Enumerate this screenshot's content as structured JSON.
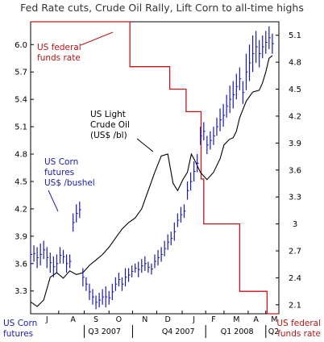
{
  "chart_data": {
    "type": "line",
    "title": "Fed Rate cuts, Crude Oil Rally, Lift Corn to all-time highs",
    "left_axis": {
      "label": [
        "US Corn",
        "futures"
      ],
      "ylim": [
        3.05,
        6.25
      ],
      "ticks": [
        "6.0",
        "5.7",
        "5.4",
        "5.1",
        "4.8",
        "4.5",
        "4.2",
        "3.9",
        "3.6",
        "3.3"
      ],
      "tick_values": [
        6.0,
        5.7,
        5.4,
        5.1,
        4.8,
        4.5,
        4.2,
        3.9,
        3.6,
        3.3
      ]
    },
    "right_axis": {
      "label": [
        "US federal",
        "funds rate"
      ],
      "ylim": [
        2.0,
        5.25
      ],
      "ticks": [
        "5.1",
        "4.8",
        "4.5",
        "4.2",
        "3.9",
        "3.6",
        "3.3",
        "3",
        "2.7",
        "2.4",
        "2.1"
      ],
      "tick_values": [
        5.1,
        4.8,
        4.5,
        4.2,
        3.9,
        3.6,
        3.3,
        3.0,
        2.7,
        2.4,
        2.1
      ]
    },
    "x_axis": {
      "months": [
        "J",
        "A",
        "S",
        "O",
        "N",
        "D",
        "J",
        "F",
        "M",
        "A",
        "M"
      ],
      "quarters": [
        "Q3 2007",
        "Q4 2007",
        "Q1 2008",
        "Q2"
      ]
    },
    "annotations": {
      "corn": [
        "US Corn",
        "futures",
        "US$ /bushel"
      ],
      "crude": [
        "US Light",
        "Crude Oil",
        "(US$ /bl)"
      ],
      "fed": [
        "US federal",
        "funds rate"
      ]
    },
    "series": [
      {
        "name": "US federal funds rate",
        "axis": "right",
        "color": "#c01818",
        "points": [
          [
            0,
            5.25
          ],
          [
            15.2,
            5.25
          ],
          [
            15.2,
            4.75
          ],
          [
            21.3,
            4.75
          ],
          [
            21.3,
            4.5
          ],
          [
            23.8,
            4.5
          ],
          [
            23.8,
            4.25
          ],
          [
            26.1,
            4.25
          ],
          [
            26.1,
            3.5
          ],
          [
            26.5,
            3.5
          ],
          [
            26.5,
            3.0
          ],
          [
            32.0,
            3.0
          ],
          [
            32.0,
            2.25
          ],
          [
            36.2,
            2.25
          ],
          [
            36.2,
            2.0
          ],
          [
            38,
            2.0
          ]
        ]
      },
      {
        "name": "US Light Crude Oil (US$ /bl)",
        "axis": "left",
        "color": "#000000",
        "points": [
          [
            0,
            3.18
          ],
          [
            1,
            3.13
          ],
          [
            2,
            3.2
          ],
          [
            3,
            3.45
          ],
          [
            4,
            3.5
          ],
          [
            5,
            3.44
          ],
          [
            6,
            3.52
          ],
          [
            7,
            3.48
          ],
          [
            8,
            3.5
          ],
          [
            9,
            3.58
          ],
          [
            10,
            3.64
          ],
          [
            11,
            3.7
          ],
          [
            12,
            3.78
          ],
          [
            13,
            3.88
          ],
          [
            14,
            3.98
          ],
          [
            15,
            4.05
          ],
          [
            16,
            4.1
          ],
          [
            17,
            4.2
          ],
          [
            18,
            4.4
          ],
          [
            19,
            4.6
          ],
          [
            20,
            4.78
          ],
          [
            21,
            4.8
          ],
          [
            21.8,
            4.48
          ],
          [
            22.5,
            4.4
          ],
          [
            23.3,
            4.52
          ],
          [
            24,
            4.6
          ],
          [
            24.6,
            4.8
          ],
          [
            25.2,
            4.72
          ],
          [
            26,
            4.6
          ],
          [
            27,
            4.52
          ],
          [
            28,
            4.6
          ],
          [
            29,
            4.75
          ],
          [
            29.6,
            4.9
          ],
          [
            30.4,
            4.96
          ],
          [
            31,
            4.98
          ],
          [
            31.5,
            5.05
          ],
          [
            32,
            5.2
          ],
          [
            33,
            5.38
          ],
          [
            34,
            5.48
          ],
          [
            35,
            5.5
          ],
          [
            35.5,
            5.58
          ],
          [
            36,
            5.7
          ],
          [
            36.5,
            5.85
          ],
          [
            37,
            5.88
          ]
        ]
      },
      {
        "name": "US Corn futures (US$ /bushel)",
        "axis": "left",
        "color": "#1a1aa8",
        "bars": [
          [
            0,
            3.55,
            3.85
          ],
          [
            0.5,
            3.62,
            3.8
          ],
          [
            1,
            3.55,
            3.78
          ],
          [
            1.5,
            3.58,
            3.82
          ],
          [
            2,
            3.65,
            3.85
          ],
          [
            2.5,
            3.55,
            3.78
          ],
          [
            3,
            3.5,
            3.72
          ],
          [
            3.5,
            3.45,
            3.68
          ],
          [
            4,
            3.5,
            3.7
          ],
          [
            4.5,
            3.6,
            3.78
          ],
          [
            5,
            3.6,
            3.75
          ],
          [
            5.5,
            3.5,
            3.7
          ],
          [
            6,
            3.55,
            3.7
          ],
          [
            6.5,
            3.95,
            4.15
          ],
          [
            7,
            4.05,
            4.25
          ],
          [
            7.5,
            4.1,
            4.28
          ],
          [
            8,
            3.35,
            3.55
          ],
          [
            8.5,
            3.3,
            3.45
          ],
          [
            9,
            3.2,
            3.38
          ],
          [
            9.5,
            3.15,
            3.32
          ],
          [
            10,
            3.1,
            3.25
          ],
          [
            10.5,
            3.12,
            3.28
          ],
          [
            11,
            3.15,
            3.32
          ],
          [
            11.5,
            3.12,
            3.35
          ],
          [
            12,
            3.15,
            3.3
          ],
          [
            12.5,
            3.2,
            3.38
          ],
          [
            13,
            3.3,
            3.45
          ],
          [
            13.5,
            3.35,
            3.5
          ],
          [
            14,
            3.3,
            3.45
          ],
          [
            14.5,
            3.35,
            3.55
          ],
          [
            15,
            3.4,
            3.55
          ],
          [
            15.5,
            3.45,
            3.58
          ],
          [
            16,
            3.5,
            3.6
          ],
          [
            16.5,
            3.45,
            3.62
          ],
          [
            17,
            3.5,
            3.65
          ],
          [
            17.5,
            3.52,
            3.68
          ],
          [
            18,
            3.5,
            3.62
          ],
          [
            18.5,
            3.48,
            3.6
          ],
          [
            19,
            3.55,
            3.7
          ],
          [
            19.5,
            3.58,
            3.75
          ],
          [
            20,
            3.62,
            3.78
          ],
          [
            20.5,
            3.68,
            3.85
          ],
          [
            21,
            3.75,
            3.92
          ],
          [
            21.5,
            3.8,
            3.95
          ],
          [
            22,
            3.85,
            4.05
          ],
          [
            22.5,
            4.0,
            4.15
          ],
          [
            23,
            4.05,
            4.22
          ],
          [
            23.5,
            4.1,
            4.25
          ],
          [
            24,
            4.3,
            4.5
          ],
          [
            24.5,
            4.4,
            4.6
          ],
          [
            25,
            4.5,
            4.72
          ],
          [
            25.5,
            4.6,
            4.8
          ],
          [
            26,
            4.9,
            5.1
          ],
          [
            26.5,
            4.95,
            5.15
          ],
          [
            27,
            4.8,
            5.0
          ],
          [
            27.5,
            4.85,
            5.05
          ],
          [
            28,
            4.9,
            5.1
          ],
          [
            28.5,
            5.0,
            5.2
          ],
          [
            29,
            5.05,
            5.3
          ],
          [
            29.5,
            5.1,
            5.35
          ],
          [
            30,
            5.2,
            5.45
          ],
          [
            30.5,
            5.25,
            5.55
          ],
          [
            31,
            5.3,
            5.6
          ],
          [
            31.5,
            5.4,
            5.68
          ],
          [
            32,
            5.5,
            5.75
          ],
          [
            32.5,
            5.35,
            5.6
          ],
          [
            33,
            5.5,
            5.9
          ],
          [
            33.5,
            5.6,
            6.0
          ],
          [
            34,
            5.7,
            6.1
          ],
          [
            34.5,
            5.8,
            6.15
          ],
          [
            35,
            5.75,
            6.05
          ],
          [
            35.5,
            5.85,
            6.1
          ],
          [
            36,
            5.9,
            6.15
          ],
          [
            36.5,
            5.95,
            6.2
          ],
          [
            37,
            5.9,
            6.12
          ]
        ]
      }
    ]
  }
}
